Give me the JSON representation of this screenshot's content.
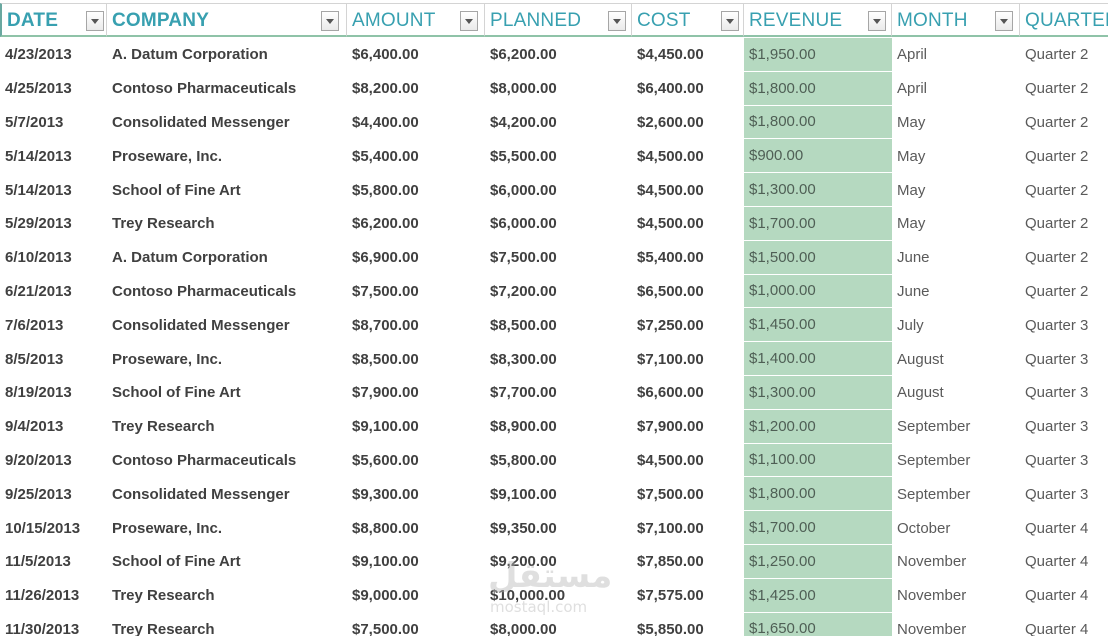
{
  "header": {
    "columns": [
      {
        "key": "date",
        "label": "DATE"
      },
      {
        "key": "company",
        "label": "COMPANY"
      },
      {
        "key": "amount",
        "label": "AMOUNT"
      },
      {
        "key": "planned",
        "label": "PLANNED"
      },
      {
        "key": "cost",
        "label": "COST"
      },
      {
        "key": "revenue",
        "label": "REVENUE"
      },
      {
        "key": "month",
        "label": "MONTH"
      },
      {
        "key": "quarter",
        "label": "QUARTER"
      }
    ]
  },
  "colors": {
    "header_text": "#38a0b0",
    "revenue_fill": "#b5d9c0",
    "header_border": "#8fc3a8"
  },
  "rows": [
    {
      "date": "4/23/2013",
      "company": "A. Datum Corporation",
      "amount": "$6,400.00",
      "planned": "$6,200.00",
      "cost": "$4,450.00",
      "revenue": "$1,950.00",
      "month": "April",
      "quarter": "Quarter 2"
    },
    {
      "date": "4/25/2013",
      "company": "Contoso Pharmaceuticals",
      "amount": "$8,200.00",
      "planned": "$8,000.00",
      "cost": "$6,400.00",
      "revenue": "$1,800.00",
      "month": "April",
      "quarter": "Quarter 2"
    },
    {
      "date": "5/7/2013",
      "company": "Consolidated Messenger",
      "amount": "$4,400.00",
      "planned": "$4,200.00",
      "cost": "$2,600.00",
      "revenue": "$1,800.00",
      "month": "May",
      "quarter": "Quarter 2"
    },
    {
      "date": "5/14/2013",
      "company": "Proseware, Inc.",
      "amount": "$5,400.00",
      "planned": "$5,500.00",
      "cost": "$4,500.00",
      "revenue": "$900.00",
      "month": "May",
      "quarter": "Quarter 2"
    },
    {
      "date": "5/14/2013",
      "company": "School of Fine Art",
      "amount": "$5,800.00",
      "planned": "$6,000.00",
      "cost": "$4,500.00",
      "revenue": "$1,300.00",
      "month": "May",
      "quarter": "Quarter 2"
    },
    {
      "date": "5/29/2013",
      "company": "Trey Research",
      "amount": "$6,200.00",
      "planned": "$6,000.00",
      "cost": "$4,500.00",
      "revenue": "$1,700.00",
      "month": "May",
      "quarter": "Quarter 2"
    },
    {
      "date": "6/10/2013",
      "company": "A. Datum Corporation",
      "amount": "$6,900.00",
      "planned": "$7,500.00",
      "cost": "$5,400.00",
      "revenue": "$1,500.00",
      "month": "June",
      "quarter": "Quarter 2"
    },
    {
      "date": "6/21/2013",
      "company": "Contoso Pharmaceuticals",
      "amount": "$7,500.00",
      "planned": "$7,200.00",
      "cost": "$6,500.00",
      "revenue": "$1,000.00",
      "month": "June",
      "quarter": "Quarter 2"
    },
    {
      "date": "7/6/2013",
      "company": "Consolidated Messenger",
      "amount": "$8,700.00",
      "planned": "$8,500.00",
      "cost": "$7,250.00",
      "revenue": "$1,450.00",
      "month": "July",
      "quarter": "Quarter 3"
    },
    {
      "date": "8/5/2013",
      "company": "Proseware, Inc.",
      "amount": "$8,500.00",
      "planned": "$8,300.00",
      "cost": "$7,100.00",
      "revenue": "$1,400.00",
      "month": "August",
      "quarter": "Quarter 3"
    },
    {
      "date": "8/19/2013",
      "company": "School of Fine Art",
      "amount": "$7,900.00",
      "planned": "$7,700.00",
      "cost": "$6,600.00",
      "revenue": "$1,300.00",
      "month": "August",
      "quarter": "Quarter 3"
    },
    {
      "date": "9/4/2013",
      "company": "Trey Research",
      "amount": "$9,100.00",
      "planned": "$8,900.00",
      "cost": "$7,900.00",
      "revenue": "$1,200.00",
      "month": "September",
      "quarter": "Quarter 3"
    },
    {
      "date": "9/20/2013",
      "company": "Contoso Pharmaceuticals",
      "amount": "$5,600.00",
      "planned": "$5,800.00",
      "cost": "$4,500.00",
      "revenue": "$1,100.00",
      "month": "September",
      "quarter": "Quarter 3"
    },
    {
      "date": "9/25/2013",
      "company": "Consolidated Messenger",
      "amount": "$9,300.00",
      "planned": "$9,100.00",
      "cost": "$7,500.00",
      "revenue": "$1,800.00",
      "month": "September",
      "quarter": "Quarter 3"
    },
    {
      "date": "10/15/2013",
      "company": "Proseware, Inc.",
      "amount": "$8,800.00",
      "planned": "$9,350.00",
      "cost": "$7,100.00",
      "revenue": "$1,700.00",
      "month": "October",
      "quarter": "Quarter 4"
    },
    {
      "date": "11/5/2013",
      "company": "School of Fine Art",
      "amount": "$9,100.00",
      "planned": "$9,200.00",
      "cost": "$7,850.00",
      "revenue": "$1,250.00",
      "month": "November",
      "quarter": "Quarter 4"
    },
    {
      "date": "11/26/2013",
      "company": "Trey Research",
      "amount": "$9,000.00",
      "planned": "$10,000.00",
      "cost": "$7,575.00",
      "revenue": "$1,425.00",
      "month": "November",
      "quarter": "Quarter 4"
    },
    {
      "date": "11/30/2013",
      "company": "Trey Research",
      "amount": "$7,500.00",
      "planned": "$8,000.00",
      "cost": "$5,850.00",
      "revenue": "$1,650.00",
      "month": "November",
      "quarter": "Quarter 4"
    }
  ],
  "watermark": {
    "arabic": "مستقل",
    "latin": "mostaql.com"
  }
}
